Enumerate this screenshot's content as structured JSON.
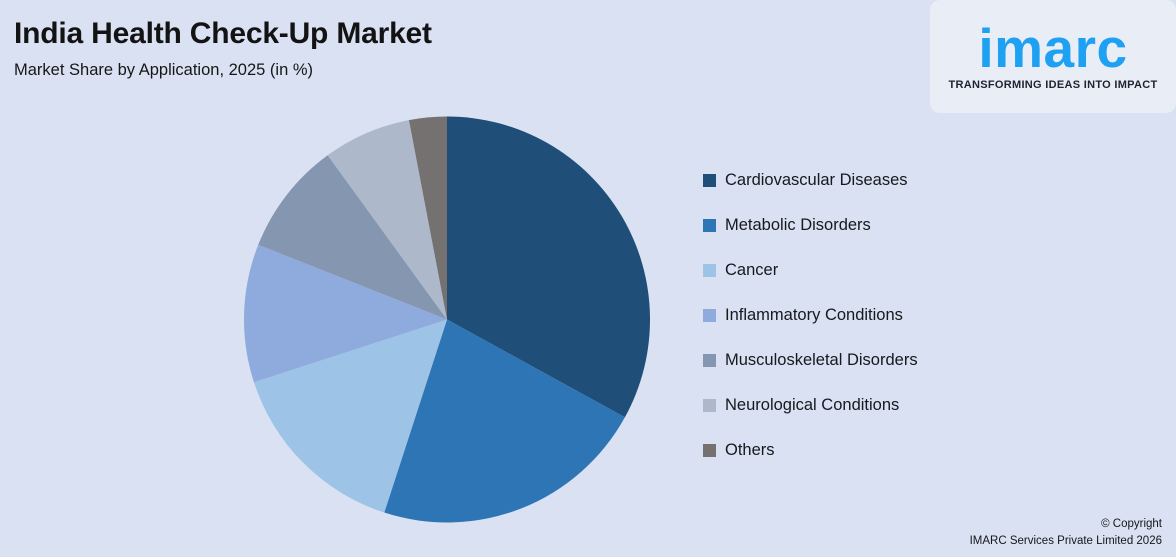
{
  "header": {
    "title": "India Health Check-Up Market",
    "subtitle": "Market Share by Application, 2025 (in %)"
  },
  "logo": {
    "brand": "imarc",
    "tagline": "TRANSFORMING IDEAS INTO IMPACT",
    "brand_color": "#1ea1f2"
  },
  "chart_data": {
    "type": "pie",
    "title": "India Health Check-Up Market",
    "subtitle": "Market Share by Application, 2025 (in %)",
    "unit": "%",
    "start_angle_deg": 0,
    "direction": "clockwise",
    "legend_position": "right",
    "categories": [
      "Cardiovascular Diseases",
      "Metabolic Disorders",
      "Cancer",
      "Inflammatory Conditions",
      "Musculoskeletal Disorders",
      "Neurological Conditions",
      "Others"
    ],
    "values": [
      33,
      22,
      15,
      11,
      9,
      7,
      3
    ],
    "colors": [
      "#1f4e79",
      "#2e75b6",
      "#9dc3e6",
      "#8faadc",
      "#8496b0",
      "#adb9ca",
      "#767171"
    ]
  },
  "footer": {
    "copyright_line1": "© Copyright",
    "copyright_line2": "IMARC Services Private Limited 2026"
  },
  "theme": {
    "background": "#d9e1f2",
    "logo_panel_background": "#e9edf6",
    "text_color": "#131313"
  }
}
